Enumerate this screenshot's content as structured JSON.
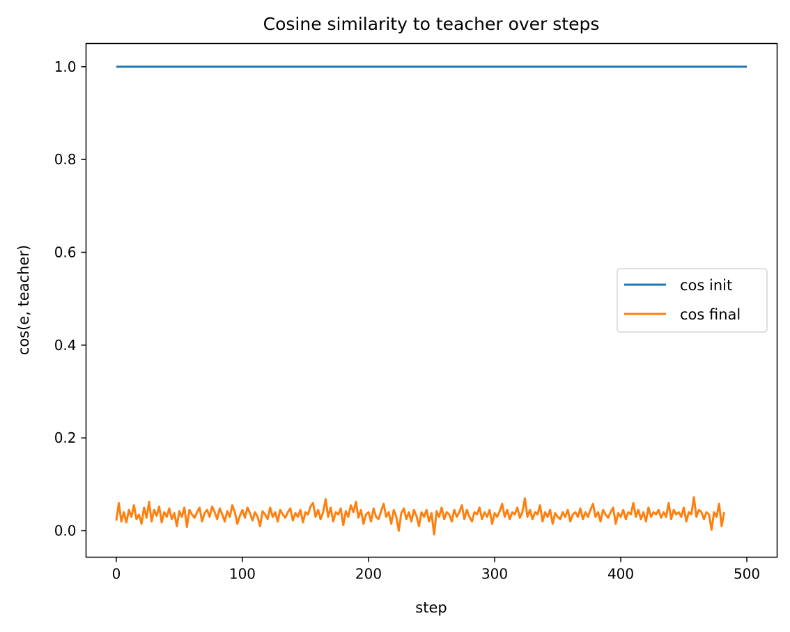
{
  "chart_data": {
    "type": "line",
    "title": "Cosine similarity to teacher over steps",
    "xlabel": "step",
    "ylabel": "cos(e, teacher)",
    "xlim": [
      -24,
      524
    ],
    "ylim": [
      -0.057,
      1.05
    ],
    "xticks": [
      0,
      100,
      200,
      300,
      400,
      500
    ],
    "yticks": [
      0.0,
      0.2,
      0.4,
      0.6,
      0.8,
      1.0
    ],
    "legend_position": "center right",
    "grid": false,
    "series": [
      {
        "name": "cos init",
        "color": "#1f77b4",
        "x": [
          0,
          500
        ],
        "y": [
          1.0,
          1.0
        ]
      },
      {
        "name": "cos final",
        "color": "#ff7f0e",
        "x_start": 0,
        "x_step": 2,
        "y": [
          0.022,
          0.06,
          0.02,
          0.04,
          0.018,
          0.045,
          0.03,
          0.055,
          0.025,
          0.035,
          0.015,
          0.05,
          0.028,
          0.062,
          0.02,
          0.045,
          0.032,
          0.052,
          0.018,
          0.04,
          0.03,
          0.048,
          0.025,
          0.038,
          0.01,
          0.042,
          0.03,
          0.05,
          0.008,
          0.045,
          0.035,
          0.028,
          0.04,
          0.05,
          0.02,
          0.038,
          0.045,
          0.03,
          0.052,
          0.04,
          0.025,
          0.048,
          0.035,
          0.02,
          0.042,
          0.03,
          0.055,
          0.04,
          0.015,
          0.032,
          0.045,
          0.028,
          0.05,
          0.038,
          0.022,
          0.04,
          0.03,
          0.01,
          0.042,
          0.035,
          0.025,
          0.05,
          0.03,
          0.04,
          0.02,
          0.045,
          0.035,
          0.028,
          0.04,
          0.048,
          0.022,
          0.038,
          0.03,
          0.045,
          0.018,
          0.04,
          0.035,
          0.052,
          0.06,
          0.03,
          0.045,
          0.025,
          0.04,
          0.068,
          0.03,
          0.05,
          0.02,
          0.04,
          0.035,
          0.048,
          0.012,
          0.042,
          0.03,
          0.055,
          0.04,
          0.062,
          0.028,
          0.045,
          0.015,
          0.035,
          0.04,
          0.02,
          0.048,
          0.03,
          0.025,
          0.042,
          0.058,
          0.03,
          0.04,
          0.015,
          0.045,
          0.03,
          0.0,
          0.038,
          0.048,
          0.025,
          0.04,
          0.02,
          0.045,
          0.032,
          0.01,
          0.04,
          0.03,
          0.045,
          0.02,
          0.038,
          -0.008,
          0.042,
          0.03,
          0.05,
          0.025,
          0.04,
          0.035,
          0.02,
          0.045,
          0.03,
          0.04,
          0.055,
          0.025,
          0.045,
          0.03,
          0.02,
          0.04,
          0.035,
          0.05,
          0.025,
          0.04,
          0.03,
          0.045,
          0.015,
          0.038,
          0.03,
          0.042,
          0.058,
          0.03,
          0.045,
          0.025,
          0.04,
          0.035,
          0.05,
          0.028,
          0.04,
          0.07,
          0.03,
          0.045,
          0.025,
          0.04,
          0.035,
          0.055,
          0.02,
          0.04,
          0.03,
          0.045,
          0.015,
          0.038,
          0.03,
          0.025,
          0.04,
          0.03,
          0.045,
          0.02,
          0.035,
          0.04,
          0.03,
          0.048,
          0.025,
          0.04,
          0.03,
          0.045,
          0.058,
          0.03,
          0.04,
          0.02,
          0.045,
          0.035,
          0.028,
          0.04,
          0.05,
          0.015,
          0.038,
          0.03,
          0.045,
          0.025,
          0.04,
          0.035,
          0.06,
          0.03,
          0.045,
          0.025,
          0.04,
          0.02,
          0.05,
          0.03,
          0.04,
          0.035,
          0.045,
          0.028,
          0.04,
          0.03,
          0.06,
          0.025,
          0.045,
          0.035,
          0.04,
          0.03,
          0.05,
          0.02,
          0.04,
          0.035,
          0.072,
          0.03,
          0.045,
          0.04,
          0.025,
          0.04,
          0.035,
          0.002,
          0.04,
          0.03,
          0.058,
          0.01,
          0.04
        ]
      }
    ]
  }
}
